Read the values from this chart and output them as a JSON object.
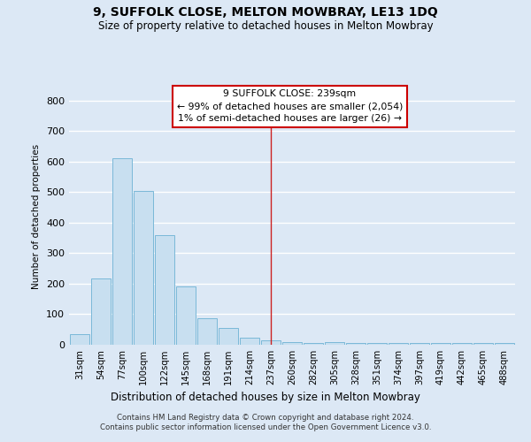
{
  "title": "9, SUFFOLK CLOSE, MELTON MOWBRAY, LE13 1DQ",
  "subtitle": "Size of property relative to detached houses in Melton Mowbray",
  "xlabel": "Distribution of detached houses by size in Melton Mowbray",
  "ylabel": "Number of detached properties",
  "bar_labels": [
    "31sqm",
    "54sqm",
    "77sqm",
    "100sqm",
    "122sqm",
    "145sqm",
    "168sqm",
    "191sqm",
    "214sqm",
    "237sqm",
    "260sqm",
    "282sqm",
    "305sqm",
    "328sqm",
    "351sqm",
    "374sqm",
    "397sqm",
    "419sqm",
    "442sqm",
    "465sqm",
    "488sqm"
  ],
  "bar_values": [
    35,
    218,
    611,
    503,
    360,
    190,
    88,
    55,
    22,
    15,
    8,
    5,
    10,
    7,
    5,
    5,
    5,
    5,
    5,
    5,
    5
  ],
  "bar_color": "#c8dff0",
  "bar_edge_color": "#7ab8d8",
  "vline_index": 9,
  "vline_color": "#cc2222",
  "annotation_title": "9 SUFFOLK CLOSE: 239sqm",
  "annotation_line1": "← 99% of detached houses are smaller (2,054)",
  "annotation_line2": "1% of semi-detached houses are larger (26) →",
  "annotation_box_edge_color": "#cc0000",
  "ylim": [
    0,
    840
  ],
  "yticks": [
    0,
    100,
    200,
    300,
    400,
    500,
    600,
    700,
    800
  ],
  "fig_bg_color": "#dce8f5",
  "plot_bg_color": "#dce8f5",
  "grid_color": "#ffffff",
  "footer_line1": "Contains HM Land Registry data © Crown copyright and database right 2024.",
  "footer_line2": "Contains public sector information licensed under the Open Government Licence v3.0."
}
